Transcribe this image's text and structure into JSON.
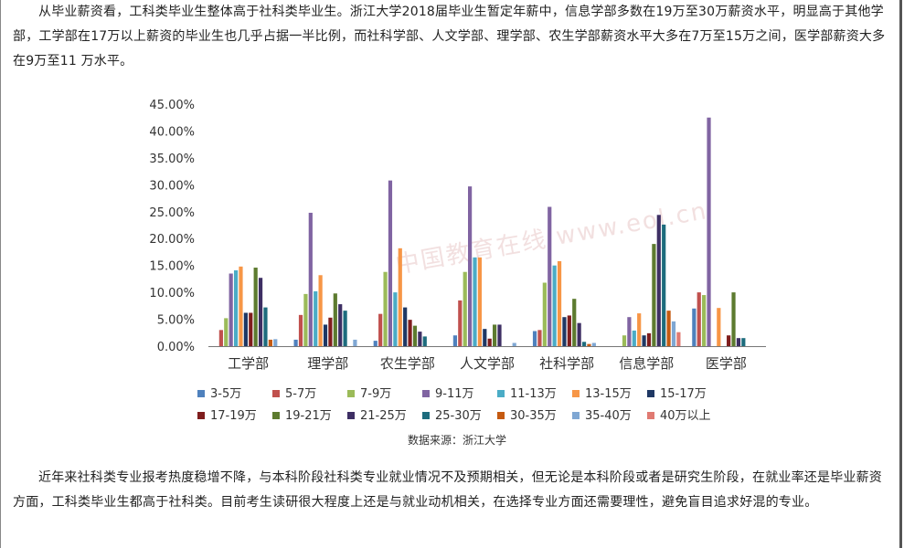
{
  "intro_paragraph": "从毕业薪资看，工科类毕业生整体高于社科类毕业生。浙江大学2018届毕业生暂定年薪中，信息学部多数在19万至30万薪资水平，明显高于其他学部，工学部在17万以上薪资的毕业生也几乎占据一半比例，而社科学部、人文学部、理学部、农生学部薪资水平大多在7万至15万之间，医学部薪资大多在9万至11 万水平。",
  "closing_paragraph": "近年来社科类专业报考热度稳增不降，与本科阶段社科类专业就业情况不及预期相关，但无论是本科阶段或者是研究生阶段，在就业率还是毕业薪资方面，工科类毕业生都高于社科类。目前考生读研很大程度上还是与就业动机相关，在选择专业方面还需要理性，避免盲目追求好混的专业。",
  "watermark": "中国教育在线 www.eol.cn",
  "chart_data": {
    "type": "bar",
    "title": "",
    "xlabel": "",
    "ylabel": "",
    "ylim": [
      0,
      45
    ],
    "y_ticks": [
      "0.00%",
      "5.00%",
      "10.00%",
      "15.00%",
      "20.00%",
      "25.00%",
      "30.00%",
      "35.00%",
      "40.00%",
      "45.00%"
    ],
    "grid": false,
    "legend_position": "bottom",
    "source_note": "数据来源：浙江大学",
    "categories": [
      "工学部",
      "理学部",
      "农生学部",
      "人文学部",
      "社科学部",
      "信息学部",
      "医学部"
    ],
    "series": [
      {
        "name": "3-5万",
        "color": "#4f81bd",
        "values": [
          0.0,
          1.2,
          1.0,
          2.0,
          2.8,
          0.0,
          7.0
        ]
      },
      {
        "name": "5-7万",
        "color": "#c0504d",
        "values": [
          3.0,
          5.8,
          6.0,
          8.5,
          3.0,
          0.0,
          10.0
        ]
      },
      {
        "name": "7-9万",
        "color": "#9bbb59",
        "values": [
          5.2,
          9.7,
          13.8,
          13.8,
          11.8,
          2.0,
          9.5
        ]
      },
      {
        "name": "9-11万",
        "color": "#8064a2",
        "values": [
          13.5,
          24.8,
          30.8,
          29.7,
          25.9,
          5.4,
          42.5
        ]
      },
      {
        "name": "11-13万",
        "color": "#4bacc6",
        "values": [
          14.1,
          10.2,
          10.0,
          16.5,
          15.0,
          2.9,
          0.0
        ]
      },
      {
        "name": "13-15万",
        "color": "#f79646",
        "values": [
          14.8,
          13.2,
          18.2,
          16.5,
          15.8,
          6.1,
          7.1
        ]
      },
      {
        "name": "15-17万",
        "color": "#1f3864",
        "values": [
          6.2,
          4.0,
          7.2,
          3.2,
          5.4,
          2.0,
          0.0
        ]
      },
      {
        "name": "17-19万",
        "color": "#7f1d1d",
        "values": [
          6.2,
          5.3,
          4.9,
          1.4,
          5.7,
          2.4,
          2.0
        ]
      },
      {
        "name": "19-21万",
        "color": "#5d7b2f",
        "values": [
          14.6,
          9.8,
          3.8,
          4.0,
          8.8,
          19.0,
          10.0
        ]
      },
      {
        "name": "21-25万",
        "color": "#3e2f64",
        "values": [
          12.7,
          7.8,
          2.7,
          4.0,
          4.3,
          24.4,
          1.5
        ]
      },
      {
        "name": "25-30万",
        "color": "#1d6c7d",
        "values": [
          7.2,
          6.6,
          1.8,
          0.0,
          0.8,
          22.6,
          1.5
        ]
      },
      {
        "name": "30-35万",
        "color": "#c55a11",
        "values": [
          1.2,
          0.0,
          0.0,
          0.0,
          0.4,
          6.6,
          0.0
        ]
      },
      {
        "name": "35-40万",
        "color": "#7fa7d3",
        "values": [
          1.3,
          1.2,
          0.0,
          0.6,
          0.6,
          4.6,
          0.0
        ]
      },
      {
        "name": "40万以上",
        "color": "#e07a72",
        "values": [
          0.0,
          0.0,
          0.0,
          0.0,
          0.0,
          2.6,
          0.0
        ]
      }
    ]
  }
}
